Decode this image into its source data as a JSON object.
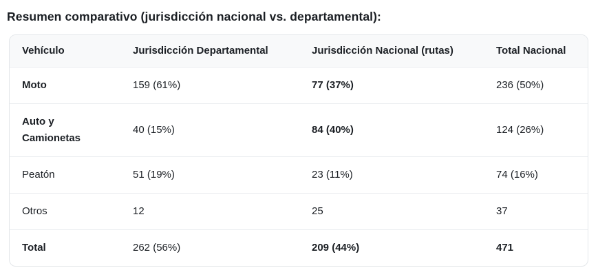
{
  "title": "Resumen comparativo (jurisdicción nacional vs. departamental):",
  "colors": {
    "text": "#1b1f24",
    "card_border": "#e4e7ea",
    "row_separator": "#e9ecef",
    "header_background": "#f8f9fa",
    "background": "#ffffff"
  },
  "table": {
    "columns": [
      {
        "id": "vehiculo",
        "label": "Vehículo"
      },
      {
        "id": "jurisdiccion-departamental",
        "label": "Jurisdicción Departamental"
      },
      {
        "id": "jurisdiccion-nacional-rutas",
        "label": "Jurisdicción Nacional (rutas)"
      },
      {
        "id": "total-nacional",
        "label": "Total Nacional"
      }
    ],
    "rows": [
      {
        "id": "moto",
        "cells": [
          "Moto",
          "159 (61%)",
          "77 (37%)",
          "236 (50%)"
        ],
        "bold": [
          true,
          false,
          true,
          false
        ]
      },
      {
        "id": "auto-y-camionetas",
        "cells": [
          "Auto y Camionetas",
          "40 (15%)",
          "84 (40%)",
          "124 (26%)"
        ],
        "bold": [
          true,
          false,
          true,
          false
        ]
      },
      {
        "id": "peaton",
        "cells": [
          "Peatón",
          "51 (19%)",
          "23 (11%)",
          "74 (16%)"
        ],
        "bold": [
          false,
          false,
          false,
          false
        ]
      },
      {
        "id": "otros",
        "cells": [
          "Otros",
          "12",
          "25",
          "37"
        ],
        "bold": [
          false,
          false,
          false,
          false
        ]
      },
      {
        "id": "total",
        "cells": [
          "Total",
          "262 (56%)",
          "209 (44%)",
          "471"
        ],
        "bold": [
          true,
          false,
          true,
          true
        ]
      }
    ]
  }
}
